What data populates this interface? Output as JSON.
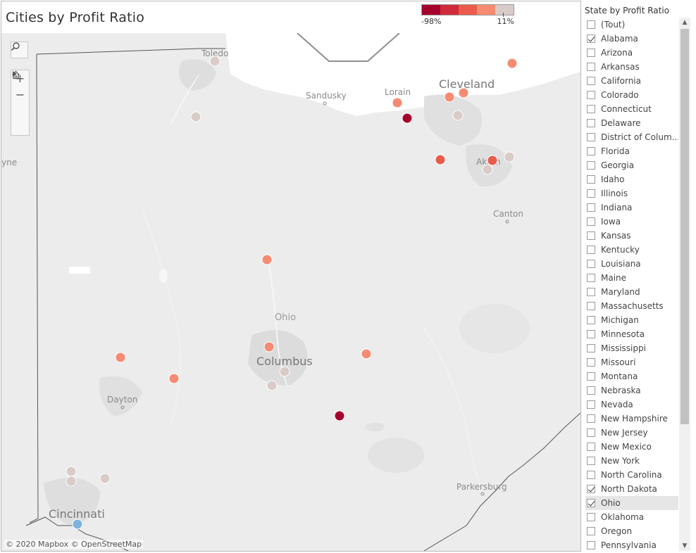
{
  "title": "Cities by Profit Ratio",
  "legend": {
    "min_label": "-98%",
    "max_label": "11%",
    "colors": [
      "#a6002d",
      "#d02b3a",
      "#ea5b4a",
      "#f68b73",
      "#d9ccc8"
    ]
  },
  "map": {
    "state_label": "Ohio",
    "labels": {
      "toledo": "Toledo",
      "sandusky": "Sandusky",
      "lorain": "Lorain",
      "cleveland": "Cleveland",
      "akron": "Akron",
      "canton": "Canton",
      "columbus": "Columbus",
      "dayton": "Dayton",
      "cincinnati": "Cincinnati",
      "parkersburg": "Parkersburg",
      "wayne": "yne"
    },
    "attribution": "© 2020 Mapbox © OpenStreetMap",
    "tools": {
      "search_icon": "magnifier-icon",
      "zoom_in": "+",
      "zoom_out": "−",
      "home_icon": "home-icon",
      "expand_icon": "play-icon"
    }
  },
  "filter": {
    "title": "State by Profit Ratio",
    "items": [
      {
        "label": "(Tout)",
        "checked": false
      },
      {
        "label": "Alabama",
        "checked": true
      },
      {
        "label": "Arizona",
        "checked": false
      },
      {
        "label": "Arkansas",
        "checked": false
      },
      {
        "label": "California",
        "checked": false
      },
      {
        "label": "Colorado",
        "checked": false
      },
      {
        "label": "Connecticut",
        "checked": false
      },
      {
        "label": "Delaware",
        "checked": false
      },
      {
        "label": "District of Colum...",
        "checked": false
      },
      {
        "label": "Florida",
        "checked": false
      },
      {
        "label": "Georgia",
        "checked": false
      },
      {
        "label": "Idaho",
        "checked": false
      },
      {
        "label": "Illinois",
        "checked": false
      },
      {
        "label": "Indiana",
        "checked": false
      },
      {
        "label": "Iowa",
        "checked": false
      },
      {
        "label": "Kansas",
        "checked": false
      },
      {
        "label": "Kentucky",
        "checked": false
      },
      {
        "label": "Louisiana",
        "checked": false
      },
      {
        "label": "Maine",
        "checked": false
      },
      {
        "label": "Maryland",
        "checked": false
      },
      {
        "label": "Massachusetts",
        "checked": false
      },
      {
        "label": "Michigan",
        "checked": false
      },
      {
        "label": "Minnesota",
        "checked": false
      },
      {
        "label": "Mississippi",
        "checked": false
      },
      {
        "label": "Missouri",
        "checked": false
      },
      {
        "label": "Montana",
        "checked": false
      },
      {
        "label": "Nebraska",
        "checked": false
      },
      {
        "label": "Nevada",
        "checked": false
      },
      {
        "label": "New Hampshire",
        "checked": false
      },
      {
        "label": "New Jersey",
        "checked": false
      },
      {
        "label": "New Mexico",
        "checked": false
      },
      {
        "label": "New York",
        "checked": false
      },
      {
        "label": "North Carolina",
        "checked": false
      },
      {
        "label": "North Dakota",
        "checked": true
      },
      {
        "label": "Ohio",
        "checked": true,
        "highlighted": true
      },
      {
        "label": "Oklahoma",
        "checked": false
      },
      {
        "label": "Oregon",
        "checked": false
      },
      {
        "label": "Pennsylvania",
        "checked": false
      }
    ]
  }
}
